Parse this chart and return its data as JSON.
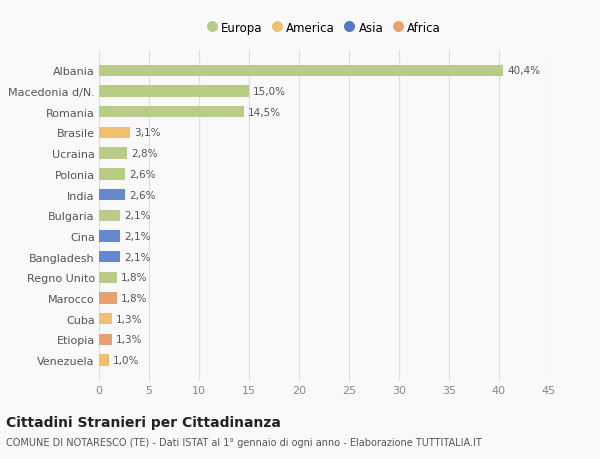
{
  "categories": [
    "Venezuela",
    "Etiopia",
    "Cuba",
    "Marocco",
    "Regno Unito",
    "Bangladesh",
    "Cina",
    "Bulgaria",
    "India",
    "Polonia",
    "Ucraina",
    "Brasile",
    "Romania",
    "Macedonia d/N.",
    "Albania"
  ],
  "values": [
    1.0,
    1.3,
    1.3,
    1.8,
    1.8,
    2.1,
    2.1,
    2.1,
    2.6,
    2.6,
    2.8,
    3.1,
    14.5,
    15.0,
    40.4
  ],
  "labels": [
    "1,0%",
    "1,3%",
    "1,3%",
    "1,8%",
    "1,8%",
    "2,1%",
    "2,1%",
    "2,1%",
    "2,6%",
    "2,6%",
    "2,8%",
    "3,1%",
    "14,5%",
    "15,0%",
    "40,4%"
  ],
  "colors": [
    "#f0c070",
    "#e8a070",
    "#f0c070",
    "#e8a070",
    "#b8cc88",
    "#6688cc",
    "#6688cc",
    "#b8cc88",
    "#6688cc",
    "#b8cc88",
    "#b8cc88",
    "#f0c070",
    "#b8cc88",
    "#b8cc88",
    "#b8cc88"
  ],
  "legend": [
    {
      "label": "Europa",
      "color": "#b8cc88"
    },
    {
      "label": "America",
      "color": "#f0c070"
    },
    {
      "label": "Asia",
      "color": "#5577cc"
    },
    {
      "label": "Africa",
      "color": "#e8a070"
    }
  ],
  "title": "Cittadini Stranieri per Cittadinanza",
  "subtitle": "COMUNE DI NOTARESCO (TE) - Dati ISTAT al 1° gennaio di ogni anno - Elaborazione TUTTITALIA.IT",
  "xlim": [
    0,
    45
  ],
  "xticks": [
    0,
    5,
    10,
    15,
    20,
    25,
    30,
    35,
    40,
    45
  ],
  "background_color": "#f9f9f9",
  "grid_color": "#dddddd",
  "bar_height": 0.55,
  "label_fontsize": 7.5,
  "tick_fontsize": 8,
  "title_fontsize": 10,
  "subtitle_fontsize": 7
}
